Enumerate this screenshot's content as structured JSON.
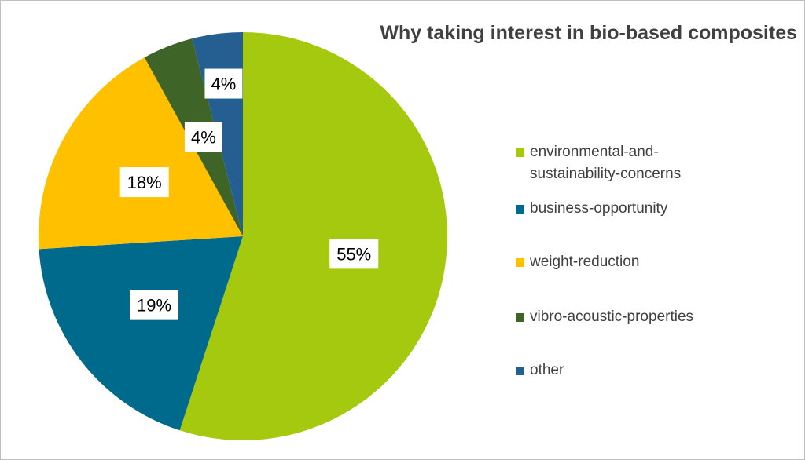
{
  "chart_data": {
    "type": "pie",
    "title": "Why taking interest in bio-based composites",
    "slices": [
      {
        "name": "environmental-and-sustainability-concerns",
        "value": 55,
        "label": "55%",
        "color": "#a5c90f"
      },
      {
        "name": "business-opportunity",
        "value": 19,
        "label": "19%",
        "color": "#006a8c"
      },
      {
        "name": "weight-reduction",
        "value": 18,
        "label": "18%",
        "color": "#ffc000"
      },
      {
        "name": "vibro-acoustic-properties",
        "value": 4,
        "label": "4%",
        "color": "#3f6428"
      },
      {
        "name": "other",
        "value": 4,
        "label": "4%",
        "color": "#255e91"
      }
    ],
    "legend_position": "right"
  }
}
